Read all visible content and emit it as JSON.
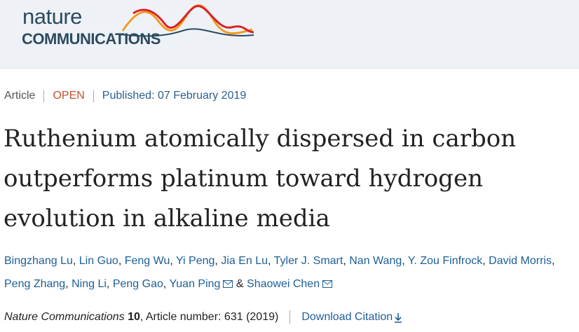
{
  "header": {
    "logo_top": "nature",
    "logo_bottom": "COMMUNICATIONS"
  },
  "meta": {
    "type": "Article",
    "access": "OPEN",
    "published": "Published: 07 February 2019"
  },
  "title": [
    "Ruthenium atomically dispersed in carbon",
    "outperforms platinum toward hydrogen",
    "evolution in alkaline media"
  ],
  "authors": [
    {
      "name": "Bingzhang Lu",
      "sep": ","
    },
    {
      "name": "Lin Guo",
      "sep": ","
    },
    {
      "name": "Feng Wu",
      "sep": ","
    },
    {
      "name": "Yi Peng",
      "sep": ","
    },
    {
      "name": "Jia En Lu",
      "sep": ","
    },
    {
      "name": "Tyler J. Smart",
      "sep": ","
    },
    {
      "name": "Nan Wang",
      "sep": ","
    },
    {
      "name": "Y. Zou Finfrock",
      "sep": ","
    },
    {
      "name": "David Morris",
      "sep": ","
    },
    {
      "name": "Peng Zhang",
      "sep": ","
    },
    {
      "name": "Ning Li",
      "sep": ","
    },
    {
      "name": "Peng Gao",
      "sep": ","
    },
    {
      "name": "Yuan Ping",
      "sep": "&",
      "mail": true
    },
    {
      "name": "Shaowei Chen",
      "mail": true
    }
  ],
  "citation": {
    "journal": "Nature Communications",
    "volume": "10",
    "details": ", Article number: 631 (2019)",
    "download": "Download Citation"
  }
}
